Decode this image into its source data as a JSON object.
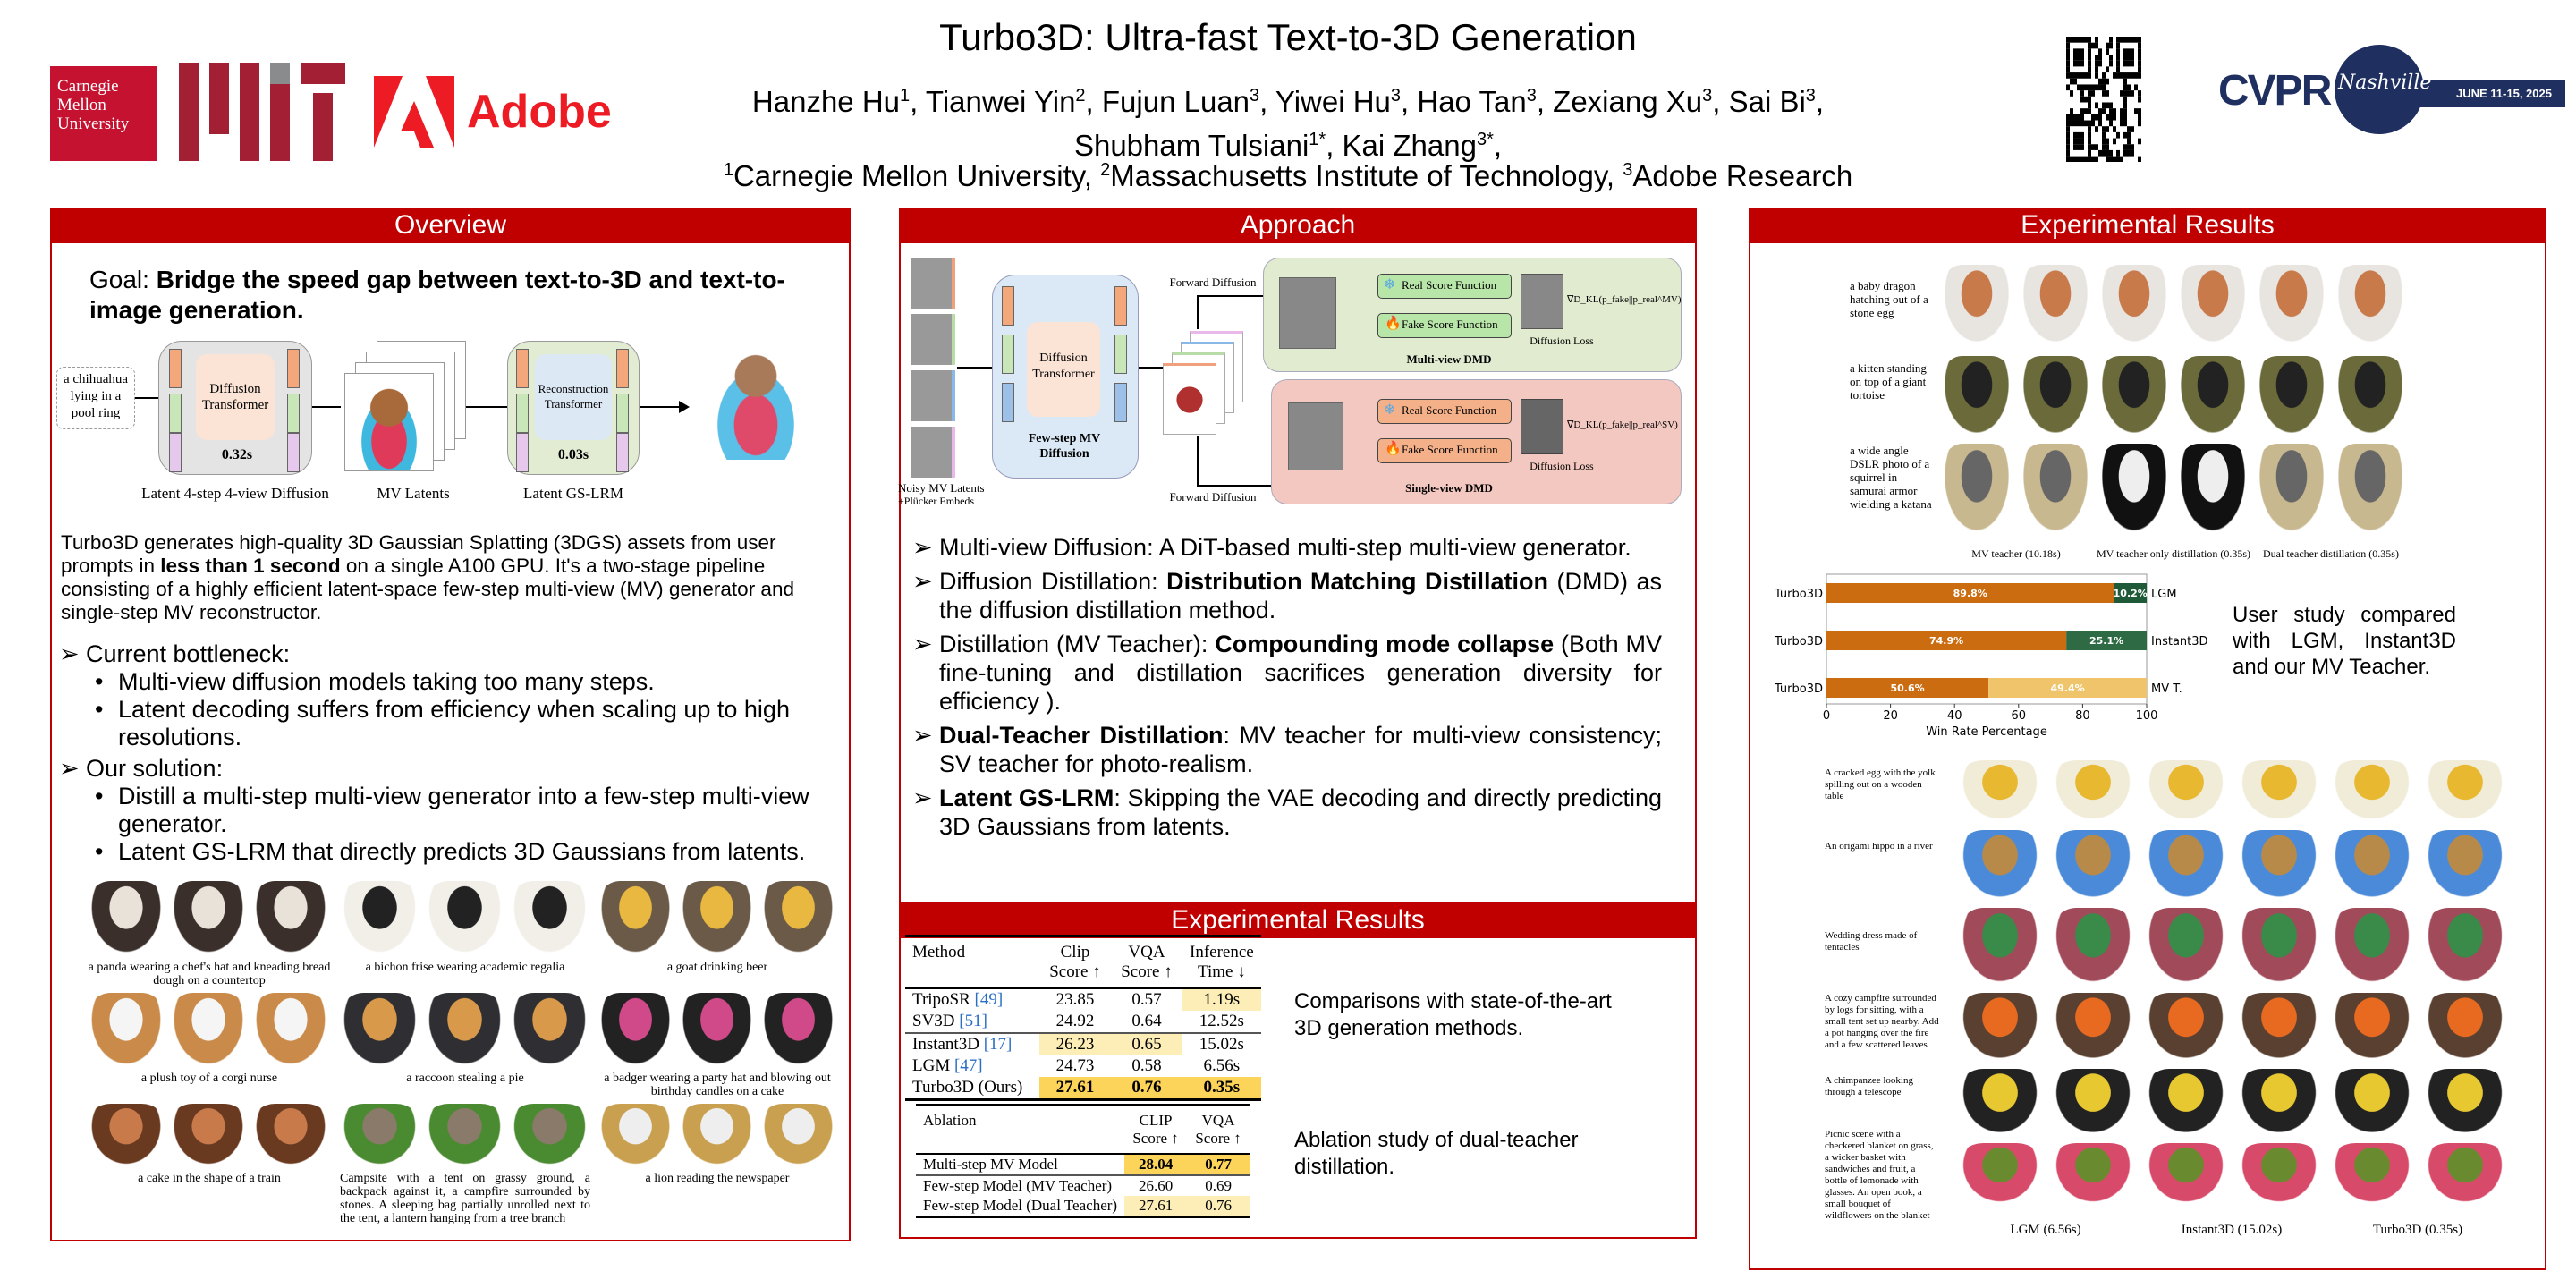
{
  "header": {
    "title": "Turbo3D: Ultra-fast Text-to-3D Generation",
    "authors_line1": [
      {
        "n": "Hanzhe Hu",
        "s": "1"
      },
      {
        "n": "Tianwei Yin",
        "s": "2"
      },
      {
        "n": "Fujun Luan",
        "s": "3"
      },
      {
        "n": "Yiwei Hu",
        "s": "3"
      },
      {
        "n": "Hao Tan",
        "s": "3"
      },
      {
        "n": "Zexiang Xu",
        "s": "3"
      },
      {
        "n": "Sai Bi",
        "s": "3"
      }
    ],
    "authors_line2": [
      {
        "n": "Shubham Tulsiani",
        "s": "1*"
      },
      {
        "n": "Kai Zhang",
        "s": "3*"
      }
    ],
    "affiliations": [
      {
        "s": "1",
        "n": "Carnegie Mellon University"
      },
      {
        "s": "2",
        "n": "Massachusetts Institute of Technology"
      },
      {
        "s": "3",
        "n": "Adobe Research"
      }
    ],
    "logos": {
      "cmu": "Carnegie Mellon University",
      "mit": "MIT",
      "adobe": "Adobe",
      "cvpr": "CVPR",
      "cvpr_city": "Nashville",
      "cvpr_dates": "JUNE 11-15, 2025"
    }
  },
  "overview": {
    "heading": "Overview",
    "goal_label": "Goal: ",
    "goal_text": "Bridge the speed gap between text-to-3D and text-to-image generation.",
    "figure": {
      "prompt": "a chihuahua lying in a pool ring",
      "diffusion": "Diffusion Transformer",
      "time1": "0.32s",
      "stage1": "Latent 4-step 4-view Diffusion",
      "latents": "MV Latents",
      "recon": "Reconstruction Transformer",
      "time2": "0.03s",
      "stage2": "Latent GS-LRM",
      "dots": "..."
    },
    "paragraph": [
      {
        "t": "Turbo3D generates high-quality 3D Gaussian Splatting (3DGS) assets from user prompts in "
      },
      {
        "t": "less than 1 second",
        "b": true
      },
      {
        "t": " on a single A100 GPU. It's a two-stage pipeline consisting of a highly efficient latent-space few-step multi-view (MV) generator and single-step MV reconstructor."
      }
    ],
    "bottleneck": "Current bottleneck:",
    "bottleneck_items": [
      "Multi-view diffusion models taking too many steps.",
      "Latent decoding suffers from efficiency when scaling up to high resolutions."
    ],
    "solution": "Our solution:",
    "solution_items": [
      "Distill a multi-step multi-view generator into a few-step multi-view generator.",
      "Latent GS-LRM that directly predicts 3D Gaussians from latents."
    ],
    "gallery_captions": [
      "a panda wearing a chef's hat and kneading bread dough on a countertop",
      "a bichon frise wearing academic regalia",
      "a goat drinking beer",
      "a plush toy of a corgi nurse",
      "a raccoon stealing a pie",
      "a badger wearing a party hat and blowing out birthday candles on a cake",
      "a cake in the shape of a train",
      "Campsite with a tent on grassy ground, a backpack against it, a campfire surrounded by stones. A sleeping bag partially unrolled next to the tent, a lantern hanging from a tree branch",
      "a lion reading the newspaper"
    ]
  },
  "approach": {
    "heading": "Approach",
    "figure": {
      "noisy": "Noisy MV Latents",
      "plucker": "+Plücker Embeds",
      "diffusion": "Diffusion Transformer",
      "fewstep": "Few-step MV Diffusion",
      "fwd1": "Forward Diffusion",
      "fwd2": "Forward Diffusion",
      "real": "Real Score Function",
      "fake": "Fake Score Function",
      "loss": "Diffusion Loss",
      "grad_mv": "∇D_KL(p_fake||p_real^MV)",
      "grad_sv": "∇D_KL(p_fake||p_real^SV)",
      "mv_dmd": "Multi-view DMD",
      "sv_dmd": "Single-view DMD"
    },
    "items": [
      [
        {
          "t": "Multi-view Diffusion: A DiT-based multi-step multi-view generator."
        }
      ],
      [
        {
          "t": "Diffusion Distillation: "
        },
        {
          "t": "Distribution Matching Distillation",
          "b": true
        },
        {
          "t": " (DMD) as the diffusion distillation method."
        }
      ],
      [
        {
          "t": "Distillation (MV Teacher): "
        },
        {
          "t": "Compounding mode collapse",
          "b": true
        },
        {
          "t": " (Both MV fine-tuning and distillation sacrifices generation diversity for efficiency )."
        }
      ],
      [
        {
          "t": "Dual-Teacher Distillation",
          "b": true
        },
        {
          "t": ": MV teacher for multi-view consistency; SV teacher for photo-realism."
        }
      ],
      [
        {
          "t": "Latent GS-LRM",
          "b": true
        },
        {
          "t": ": Skipping the VAE decoding and directly predicting 3D Gaussians from latents."
        }
      ]
    ]
  },
  "results_mid": {
    "heading": "Experimental Results",
    "table1": {
      "headers": [
        "Method",
        "Clip Score ↑",
        "VQA Score ↑",
        "Inference Time ↓"
      ],
      "rows": [
        {
          "m": "TripoSR",
          "r": "[49]",
          "c": "23.85",
          "v": "0.57",
          "t": "1.19s"
        },
        {
          "m": "SV3D",
          "r": "[51]",
          "c": "24.92",
          "v": "0.64",
          "t": "12.52s"
        },
        {
          "m": "Instant3D",
          "r": "[17]",
          "c": "26.23",
          "v": "0.65",
          "t": "15.02s"
        },
        {
          "m": "LGM",
          "r": "[47]",
          "c": "24.73",
          "v": "0.58",
          "t": "6.56s"
        },
        {
          "m": "Turbo3D (Ours)",
          "r": "",
          "c": "27.61",
          "v": "0.76",
          "t": "0.35s"
        }
      ],
      "caption": "Comparisons with state-of-the-art 3D generation methods."
    },
    "table2": {
      "headers": [
        "Ablation",
        "CLIP Score ↑",
        "VQA Score ↑"
      ],
      "rows": [
        {
          "m": "Multi-step MV Model",
          "c": "28.04",
          "v": "0.77"
        },
        {
          "m": "Few-step Model (MV Teacher)",
          "c": "26.60",
          "v": "0.69"
        },
        {
          "m": "Few-step Model (Dual Teacher)",
          "c": "27.61",
          "v": "0.76"
        }
      ],
      "caption": "Ablation study of dual-teacher distillation."
    }
  },
  "results_right": {
    "heading": "Experimental Results",
    "ablation_prompts": [
      "a baby dragon hatching out of a stone egg",
      "a kitten standing on top of a giant tortoise",
      "a wide angle DSLR photo of a squirrel in samurai armor wielding a katana"
    ],
    "ablation_labels": [
      "MV teacher (10.18s)",
      "MV teacher only distillation (0.35s)",
      "Dual teacher distillation (0.35s)"
    ],
    "user_study_caption": "User study compared with LGM, Instant3D and our MV Teacher.",
    "compare_prompts": [
      "A cracked egg with the yolk spilling out on a wooden table",
      "An origami hippo in a river",
      "Wedding dress made of tentacles",
      "A cozy campfire surrounded by logs for sitting, with a small tent set up nearby. Add a pot hanging over the fire and a few scattered leaves",
      "A chimpanzee looking through a telescope",
      "Picnic scene with a checkered blanket on grass, a wicker basket with sandwiches and fruit, a bottle of lemonade with glasses. An open book, a small bouquet of wildflowers on the blanket"
    ],
    "compare_labels": [
      "LGM (6.56s)",
      "Instant3D (15.02s)",
      "Turbo3D (0.35s)"
    ]
  },
  "chart_data": {
    "type": "bar",
    "orientation": "horizontal",
    "stacked": true,
    "categories": [
      "LGM",
      "Instant3D",
      "MV T."
    ],
    "left_labels": [
      "Turbo3D",
      "Turbo3D",
      "Turbo3D"
    ],
    "series": [
      {
        "name": "Turbo3D",
        "values": [
          89.8,
          74.9,
          50.6
        ]
      },
      {
        "values": [
          10.2,
          25.1,
          49.4
        ]
      }
    ],
    "value_labels": [
      [
        "89.8%",
        "10.2%"
      ],
      [
        "74.9%",
        "25.1%"
      ],
      [
        "50.6%",
        "49.4%"
      ]
    ],
    "xlabel": "Win Rate Percentage",
    "xlim": [
      0,
      100
    ],
    "xticks": [
      0,
      20,
      40,
      60,
      80,
      100
    ],
    "colors": {
      "turbo": "#cc6c10",
      "other": [
        "#1f5a38",
        "#2e6b45",
        "#f0c46a"
      ]
    }
  },
  "colors": {
    "accent": "#c00000",
    "cvpr": "#1f2f5f"
  }
}
